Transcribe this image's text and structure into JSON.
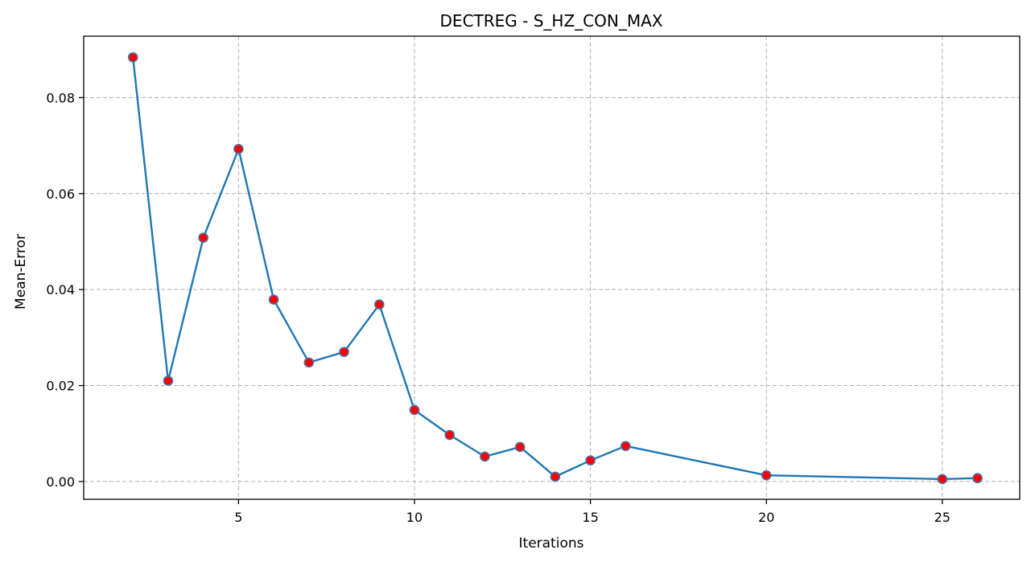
{
  "chart_data": {
    "type": "line",
    "title": "DECTREG - S_HZ_CON_MAX",
    "xlabel": "Iterations",
    "ylabel": "Mean-Error",
    "x": [
      2,
      3,
      4,
      5,
      6,
      7,
      8,
      9,
      10,
      11,
      12,
      13,
      14,
      15,
      16,
      20,
      25,
      26
    ],
    "series": [
      {
        "values": [
          0.0884,
          0.021,
          0.0508,
          0.0693,
          0.0379,
          0.0248,
          0.027,
          0.0369,
          0.0149,
          0.0097,
          0.0052,
          0.0072,
          0.001,
          0.0044,
          0.0074,
          0.0013,
          0.0005,
          0.0007
        ]
      }
    ],
    "xlim": [
      0.6,
      27.2
    ],
    "ylim": [
      -0.0037,
      0.0928
    ],
    "xticks": [
      5,
      10,
      15,
      20,
      25
    ],
    "yticks": [
      0.0,
      0.02,
      0.04,
      0.06,
      0.08
    ],
    "xtick_labels": [
      "5",
      "10",
      "15",
      "20",
      "25"
    ],
    "ytick_labels": [
      "0.00",
      "0.02",
      "0.04",
      "0.06",
      "0.08"
    ],
    "grid": true,
    "colors": {
      "line": "#1f77b4",
      "marker_fill": "#ff0000",
      "marker_edge": "#4a6fa5",
      "grid": "#b0b0b0"
    }
  }
}
